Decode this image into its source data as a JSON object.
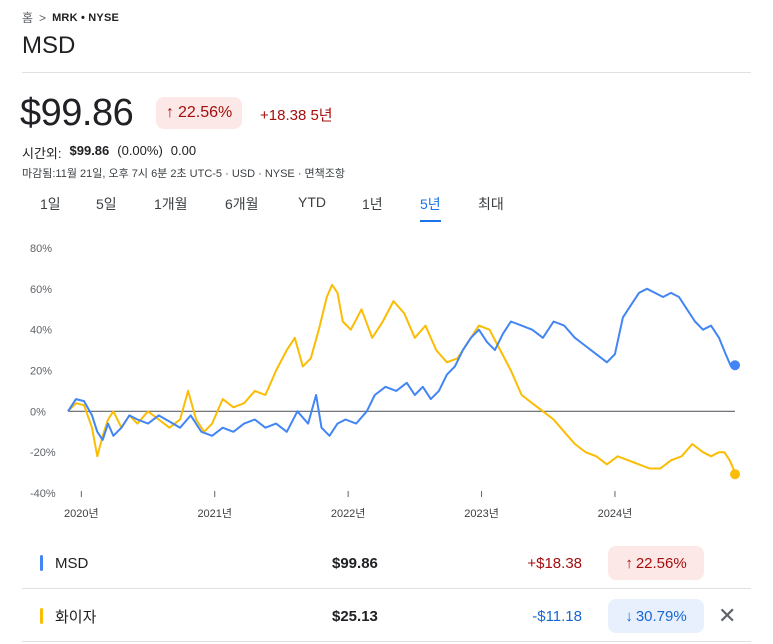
{
  "breadcrumb": {
    "home": "홈",
    "ticker": "MRK • NYSE"
  },
  "title": "MSD",
  "price": "$99.86",
  "change_badge": "22.56%",
  "change_abs": "+18.38 5년",
  "after_hours": {
    "label": "시간외:",
    "price": "$99.86",
    "pct": "(0.00%)",
    "abs": "0.00"
  },
  "meta": "마감됨:11월 21일, 오후 7시 6분 2초 UTC-5 · USD · NYSE · 면책조항",
  "tabs": [
    "1일",
    "5일",
    "1개월",
    "6개월",
    "YTD",
    "1년",
    "5년",
    "최대"
  ],
  "active_tab": "5년",
  "colors": {
    "msd": "#4285f4",
    "pfizer": "#fbbc04",
    "up": "#a50e0e",
    "down": "#1967d2"
  },
  "chart_data": {
    "type": "line",
    "y_ticks": [
      "80%",
      "60%",
      "40%",
      "20%",
      "0%",
      "-20%",
      "-40%"
    ],
    "ylim": [
      -40,
      80
    ],
    "x_ticks": [
      "2020년",
      "2021년",
      "2022년",
      "2023년",
      "2024년"
    ],
    "x_tick_years": [
      2020,
      2021,
      2022,
      2023,
      2024
    ],
    "xlim": [
      2019.9,
      2024.9
    ],
    "series": [
      {
        "name": "MSD",
        "x": [
          2019.9,
          2019.96,
          2020.02,
          2020.08,
          2020.12,
          2020.16,
          2020.2,
          2020.24,
          2020.3,
          2020.36,
          2020.42,
          2020.5,
          2020.58,
          2020.66,
          2020.74,
          2020.82,
          2020.9,
          2020.98,
          2021.06,
          2021.14,
          2021.22,
          2021.3,
          2021.38,
          2021.46,
          2021.54,
          2021.62,
          2021.7,
          2021.76,
          2021.8,
          2021.86,
          2021.92,
          2021.98,
          2022.06,
          2022.14,
          2022.2,
          2022.28,
          2022.36,
          2022.44,
          2022.5,
          2022.56,
          2022.62,
          2022.68,
          2022.74,
          2022.8,
          2022.86,
          2022.92,
          2022.98,
          2023.04,
          2023.1,
          2023.16,
          2023.22,
          2023.3,
          2023.38,
          2023.46,
          2023.54,
          2023.62,
          2023.7,
          2023.78,
          2023.86,
          2023.94,
          2024.0,
          2024.06,
          2024.12,
          2024.18,
          2024.24,
          2024.3,
          2024.36,
          2024.42,
          2024.48,
          2024.54,
          2024.6,
          2024.66,
          2024.72,
          2024.78,
          2024.83,
          2024.87,
          2024.9
        ],
        "values": [
          0,
          6,
          5,
          -2,
          -10,
          -14,
          -6,
          -12,
          -8,
          -2,
          -4,
          -6,
          -2,
          -5,
          -8,
          -2,
          -10,
          -12,
          -8,
          -10,
          -6,
          -4,
          -8,
          -6,
          -10,
          0,
          -6,
          8,
          -8,
          -12,
          -6,
          -4,
          -6,
          0,
          8,
          12,
          10,
          14,
          8,
          12,
          6,
          10,
          18,
          22,
          30,
          36,
          40,
          34,
          30,
          38,
          44,
          42,
          40,
          36,
          44,
          42,
          36,
          32,
          28,
          24,
          28,
          46,
          52,
          58,
          60,
          58,
          56,
          58,
          56,
          50,
          44,
          40,
          42,
          36,
          28,
          22,
          23
        ],
        "end_value": 22.56
      },
      {
        "name": "화이자",
        "x": [
          2019.9,
          2019.96,
          2020.02,
          2020.08,
          2020.12,
          2020.16,
          2020.2,
          2020.24,
          2020.3,
          2020.36,
          2020.42,
          2020.5,
          2020.58,
          2020.66,
          2020.74,
          2020.8,
          2020.86,
          2020.92,
          2020.98,
          2021.06,
          2021.14,
          2021.22,
          2021.3,
          2021.38,
          2021.46,
          2021.54,
          2021.6,
          2021.66,
          2021.72,
          2021.78,
          2021.84,
          2021.88,
          2021.92,
          2021.96,
          2022.02,
          2022.1,
          2022.18,
          2022.26,
          2022.34,
          2022.42,
          2022.5,
          2022.58,
          2022.66,
          2022.74,
          2022.82,
          2022.9,
          2022.98,
          2023.06,
          2023.14,
          2023.22,
          2023.3,
          2023.38,
          2023.46,
          2023.54,
          2023.62,
          2023.7,
          2023.78,
          2023.86,
          2023.94,
          2024.02,
          2024.1,
          2024.18,
          2024.26,
          2024.34,
          2024.42,
          2024.5,
          2024.58,
          2024.66,
          2024.72,
          2024.78,
          2024.82,
          2024.86,
          2024.9
        ],
        "values": [
          0,
          4,
          3,
          -8,
          -22,
          -12,
          -4,
          0,
          -8,
          -2,
          -6,
          0,
          -4,
          -8,
          -4,
          10,
          -4,
          -10,
          -6,
          6,
          2,
          4,
          10,
          8,
          20,
          30,
          36,
          22,
          26,
          40,
          56,
          62,
          58,
          44,
          40,
          50,
          36,
          44,
          54,
          48,
          36,
          42,
          30,
          24,
          26,
          34,
          42,
          40,
          30,
          20,
          8,
          4,
          0,
          -4,
          -10,
          -16,
          -20,
          -22,
          -26,
          -22,
          -24,
          -26,
          -28,
          -28,
          -24,
          -22,
          -16,
          -20,
          -22,
          -20,
          -20,
          -24,
          -30
        ],
        "end_value": -30.79
      }
    ]
  },
  "comparison_rows": [
    {
      "name": "MSD",
      "price": "$99.86",
      "abs": "+$18.38",
      "pct": "22.56%",
      "direction": "up",
      "color": "#4285f4",
      "removable": false
    },
    {
      "name": "화이자",
      "price": "$25.13",
      "abs": "-$11.18",
      "pct": "30.79%",
      "direction": "down",
      "color": "#fbbc04",
      "removable": true
    }
  ],
  "close_symbol": "✕"
}
